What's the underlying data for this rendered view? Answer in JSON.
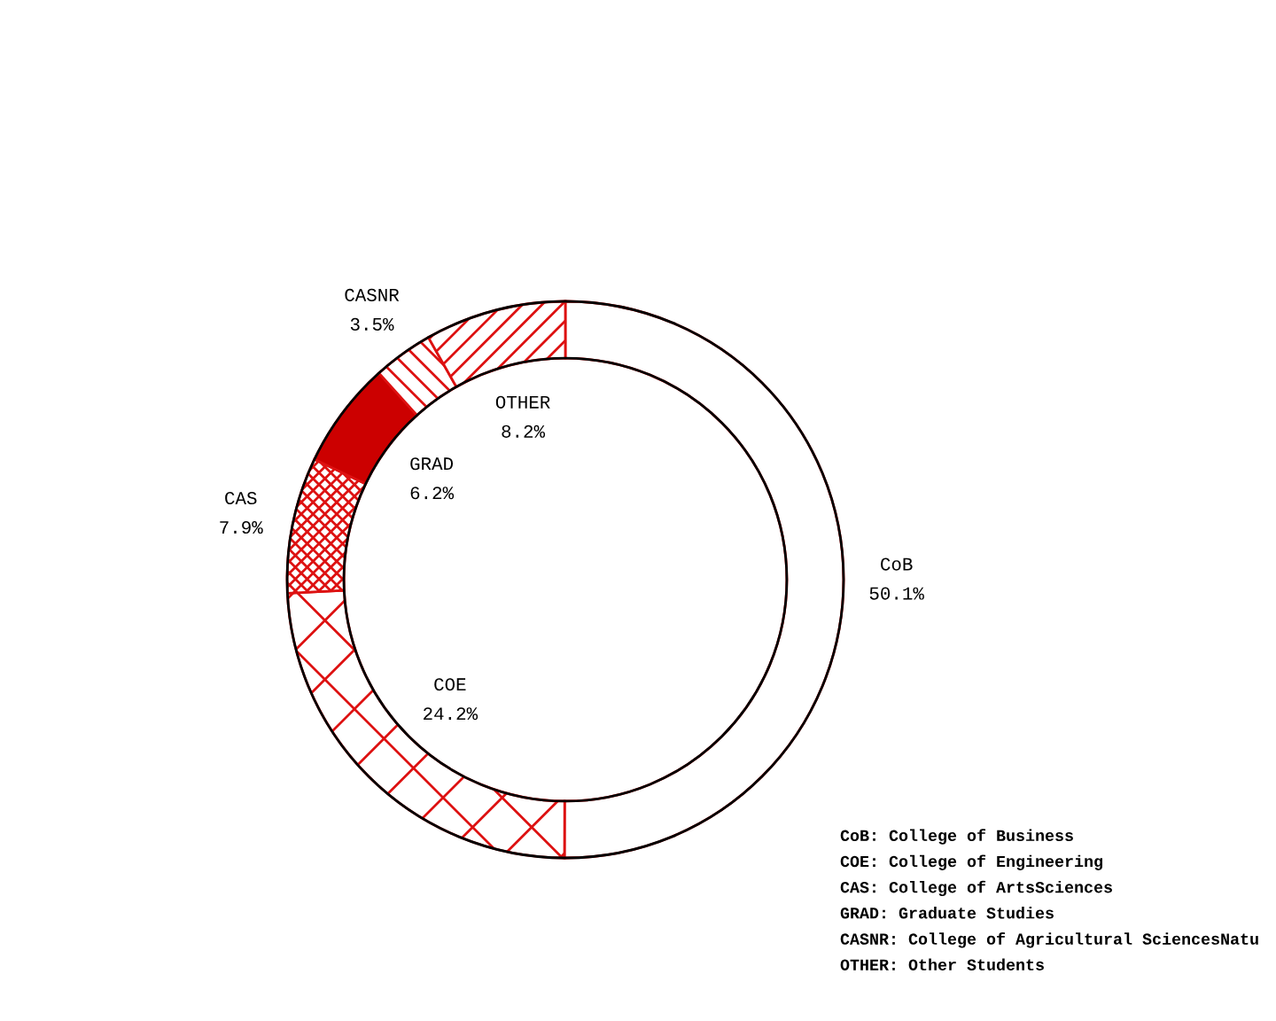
{
  "chart_data": {
    "type": "donut",
    "categories": [
      "CoB",
      "COE",
      "CAS",
      "GRAD",
      "CASNR",
      "OTHER"
    ],
    "values": [
      50.1,
      24.2,
      7.9,
      6.2,
      3.5,
      8.2
    ],
    "value_labels": [
      "50.1%",
      "24.2%",
      "7.9%",
      "6.2%",
      "3.5%",
      "8.2%"
    ],
    "colors": [
      "#ffffff",
      "#dd1111",
      "#dd1111",
      "#cc0000",
      "#dd1111",
      "#dd1111"
    ],
    "annotations": [
      "CoB: College of Business",
      "COE: College of Engineering",
      "CAS: College of ArtsSciences",
      "GRAD: Graduate Studies",
      "CASNR: College of Agricultural SciencesNatu",
      "OTHER: Other Students"
    ]
  }
}
